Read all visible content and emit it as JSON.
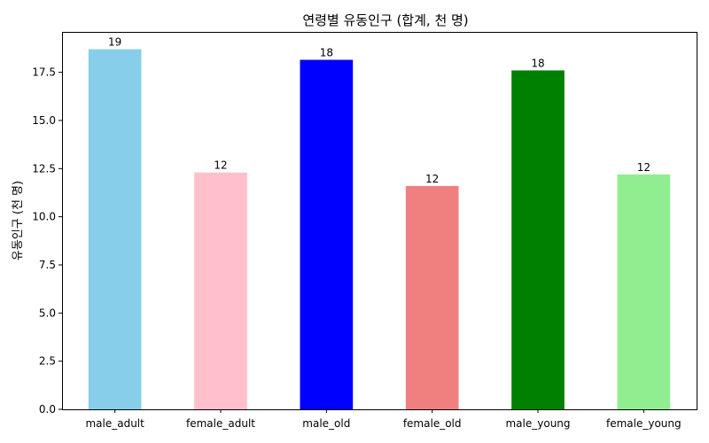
{
  "chart_data": {
    "type": "bar",
    "title": "연령별 유동인구 (합계, 천 명)",
    "xlabel": "",
    "ylabel": "유동인구 (천 명)",
    "categories": [
      "male_adult",
      "female_adult",
      "male_old",
      "female_old",
      "male_young",
      "female_young"
    ],
    "values": [
      18.7,
      12.3,
      18.15,
      11.6,
      17.6,
      12.2
    ],
    "value_labels": [
      "19",
      "12",
      "18",
      "12",
      "18",
      "12"
    ],
    "colors": [
      "#87CEEB",
      "#FFC0CB",
      "#0000FF",
      "#F08080",
      "#008000",
      "#90EE90"
    ],
    "ylim": [
      0,
      19.6
    ],
    "yticks": [
      0.0,
      2.5,
      5.0,
      7.5,
      10.0,
      12.5,
      15.0,
      17.5
    ],
    "ytick_labels": [
      "0.0",
      "2.5",
      "5.0",
      "7.5",
      "10.0",
      "12.5",
      "15.0",
      "17.5"
    ],
    "grid": false,
    "legend": "none"
  }
}
